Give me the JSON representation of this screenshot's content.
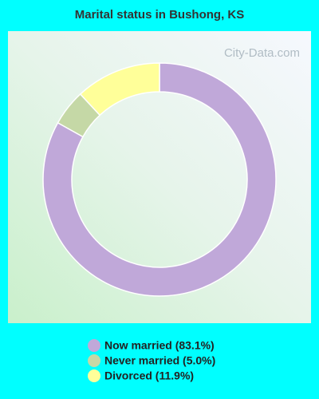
{
  "chart_data": {
    "type": "donut",
    "title": "Marital status in Bushong, KS",
    "watermark": "City-Data.com",
    "categories": [
      "Now married (83.1%)",
      "Never married (5.0%)",
      "Divorced (11.9%)"
    ],
    "values": [
      83.1,
      5.0,
      11.9
    ],
    "colors": [
      "#c0a8d9",
      "#c5d8a6",
      "#ffff99"
    ]
  }
}
